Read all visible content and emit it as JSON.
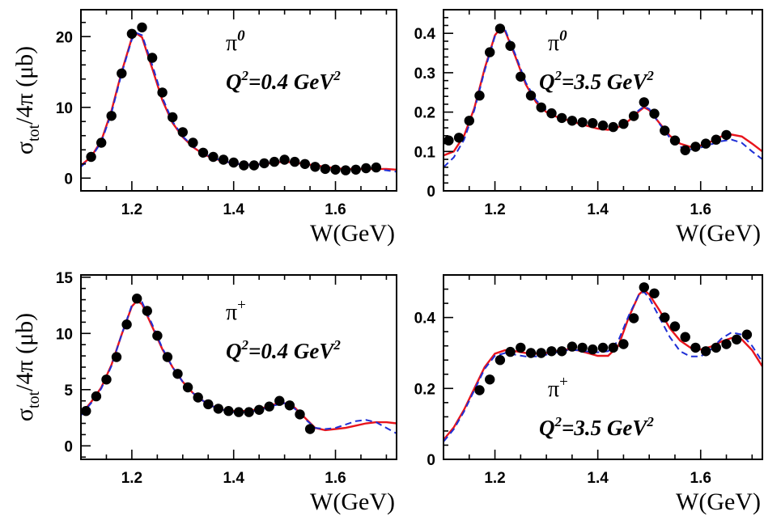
{
  "colors": {
    "model_red": "#e8141c",
    "model_blue": "#1f2fd6",
    "points": "#000000"
  },
  "chart_data": [
    {
      "id": "p1",
      "type": "scatter",
      "particle": "π",
      "particle_sup": "0",
      "q2_text": "Q",
      "q2_value": "=0.4 GeV",
      "xlabel": "W(GeV)",
      "ylabel": "σ",
      "ylabel_sub": "tot",
      "ylabel_rest": "/4π  (μb)",
      "xlim": [
        1.1,
        1.72
      ],
      "ylim": [
        -1.8,
        23.8
      ],
      "xticks": [
        1.2,
        1.4,
        1.6
      ],
      "xtick_labels": [
        "1.2",
        "1.4",
        "1.6"
      ],
      "yticks": [
        0,
        10,
        20
      ],
      "ytick_labels": [
        "0",
        "10",
        "20"
      ],
      "points": {
        "x": [
          1.12,
          1.14,
          1.16,
          1.18,
          1.2,
          1.22,
          1.24,
          1.26,
          1.28,
          1.3,
          1.32,
          1.34,
          1.36,
          1.38,
          1.4,
          1.42,
          1.44,
          1.46,
          1.48,
          1.5,
          1.52,
          1.54,
          1.56,
          1.58,
          1.6,
          1.62,
          1.64,
          1.66,
          1.68
        ],
        "y": [
          3.0,
          5.0,
          8.8,
          14.8,
          20.4,
          21.3,
          17.0,
          12.1,
          8.6,
          6.5,
          5.0,
          3.6,
          3.0,
          2.6,
          2.2,
          1.8,
          1.8,
          2.1,
          2.3,
          2.6,
          2.3,
          2.0,
          1.6,
          1.3,
          1.2,
          1.1,
          1.2,
          1.4,
          1.5
        ]
      },
      "series": [
        {
          "style": "solid",
          "color": "#e8141c",
          "x": [
            1.1,
            1.12,
            1.14,
            1.16,
            1.18,
            1.2,
            1.21,
            1.22,
            1.24,
            1.26,
            1.28,
            1.3,
            1.32,
            1.34,
            1.36,
            1.38,
            1.4,
            1.42,
            1.44,
            1.46,
            1.48,
            1.5,
            1.52,
            1.54,
            1.56,
            1.58,
            1.6,
            1.62,
            1.64,
            1.66,
            1.68,
            1.7,
            1.72
          ],
          "y": [
            1.8,
            3.0,
            5.3,
            9.5,
            15.0,
            19.8,
            20.4,
            19.9,
            15.5,
            11.0,
            7.8,
            5.8,
            4.4,
            3.4,
            2.8,
            2.4,
            2.1,
            1.9,
            1.9,
            2.0,
            2.2,
            2.3,
            2.2,
            2.0,
            1.8,
            1.6,
            1.4,
            1.3,
            1.3,
            1.3,
            1.3,
            1.3,
            1.2
          ]
        },
        {
          "style": "dashed",
          "color": "#1f2fd6",
          "x": [
            1.1,
            1.12,
            1.14,
            1.16,
            1.18,
            1.2,
            1.21,
            1.22,
            1.24,
            1.26,
            1.28,
            1.3,
            1.32,
            1.34,
            1.36,
            1.38,
            1.4,
            1.42,
            1.44,
            1.46,
            1.48,
            1.5,
            1.52,
            1.54,
            1.56,
            1.58,
            1.6,
            1.62,
            1.64,
            1.66,
            1.68,
            1.7,
            1.72
          ],
          "y": [
            1.6,
            2.9,
            5.1,
            9.2,
            14.8,
            19.6,
            20.5,
            20.2,
            16.0,
            11.4,
            8.0,
            5.9,
            4.5,
            3.5,
            2.9,
            2.4,
            2.1,
            1.9,
            1.9,
            2.0,
            2.3,
            2.4,
            2.2,
            1.9,
            1.6,
            1.4,
            1.2,
            1.1,
            1.1,
            1.2,
            1.2,
            1.1,
            0.9
          ]
        }
      ]
    },
    {
      "id": "p2",
      "type": "scatter",
      "particle": "π",
      "particle_sup": "0",
      "q2_text": "Q",
      "q2_value": "=3.5 GeV",
      "xlabel": "W(GeV)",
      "ylabel": "",
      "xlim": [
        1.1,
        1.72
      ],
      "ylim": [
        0,
        0.46
      ],
      "xticks": [
        1.2,
        1.4,
        1.6
      ],
      "xtick_labels": [
        "1.2",
        "1.4",
        "1.6"
      ],
      "yticks": [
        0,
        0.1,
        0.2,
        0.3,
        0.4
      ],
      "ytick_labels": [
        "0",
        "0.1",
        "0.2",
        "0.3",
        "0.4"
      ],
      "points": {
        "x": [
          1.11,
          1.13,
          1.15,
          1.17,
          1.19,
          1.21,
          1.23,
          1.25,
          1.27,
          1.29,
          1.31,
          1.33,
          1.35,
          1.37,
          1.39,
          1.41,
          1.43,
          1.45,
          1.47,
          1.49,
          1.51,
          1.53,
          1.55,
          1.57,
          1.59,
          1.61,
          1.63,
          1.65
        ],
        "y": [
          0.128,
          0.135,
          0.178,
          0.242,
          0.352,
          0.412,
          0.368,
          0.29,
          0.242,
          0.212,
          0.197,
          0.185,
          0.178,
          0.174,
          0.172,
          0.166,
          0.162,
          0.17,
          0.19,
          0.225,
          0.196,
          0.153,
          0.128,
          0.103,
          0.112,
          0.12,
          0.13,
          0.142
        ]
      },
      "series": [
        {
          "style": "solid",
          "color": "#e8141c",
          "x": [
            1.1,
            1.12,
            1.14,
            1.16,
            1.18,
            1.2,
            1.21,
            1.22,
            1.24,
            1.26,
            1.28,
            1.3,
            1.32,
            1.34,
            1.36,
            1.38,
            1.4,
            1.42,
            1.44,
            1.46,
            1.48,
            1.49,
            1.5,
            1.52,
            1.54,
            1.56,
            1.58,
            1.6,
            1.62,
            1.64,
            1.66,
            1.68,
            1.7,
            1.72
          ],
          "y": [
            0.09,
            0.1,
            0.14,
            0.21,
            0.31,
            0.395,
            0.412,
            0.405,
            0.34,
            0.27,
            0.225,
            0.2,
            0.188,
            0.18,
            0.172,
            0.165,
            0.158,
            0.155,
            0.162,
            0.178,
            0.202,
            0.212,
            0.205,
            0.172,
            0.14,
            0.12,
            0.112,
            0.115,
            0.125,
            0.138,
            0.143,
            0.138,
            0.12,
            0.1
          ]
        },
        {
          "style": "dashed",
          "color": "#1f2fd6",
          "x": [
            1.1,
            1.12,
            1.14,
            1.16,
            1.18,
            1.2,
            1.21,
            1.22,
            1.24,
            1.26,
            1.28,
            1.3,
            1.32,
            1.34,
            1.36,
            1.38,
            1.4,
            1.42,
            1.44,
            1.46,
            1.48,
            1.49,
            1.5,
            1.52,
            1.54,
            1.56,
            1.58,
            1.6,
            1.62,
            1.64,
            1.66,
            1.68,
            1.7,
            1.72
          ],
          "y": [
            0.06,
            0.085,
            0.13,
            0.205,
            0.305,
            0.392,
            0.413,
            0.408,
            0.345,
            0.275,
            0.23,
            0.205,
            0.192,
            0.184,
            0.176,
            0.17,
            0.165,
            0.163,
            0.168,
            0.182,
            0.205,
            0.214,
            0.208,
            0.17,
            0.135,
            0.112,
            0.105,
            0.11,
            0.118,
            0.126,
            0.13,
            0.122,
            0.1,
            0.08
          ]
        }
      ]
    },
    {
      "id": "p3",
      "type": "scatter",
      "particle": "π",
      "particle_sup": "+",
      "q2_text": "Q",
      "q2_value": "=0.4 GeV",
      "xlabel": "W(GeV)",
      "ylabel": "σ",
      "ylabel_sub": "tot",
      "ylabel_rest": "/4π  (μb)",
      "xlim": [
        1.1,
        1.72
      ],
      "ylim": [
        -1.2,
        15.2
      ],
      "xticks": [
        1.2,
        1.4,
        1.6
      ],
      "xtick_labels": [
        "1.2",
        "1.4",
        "1.6"
      ],
      "yticks": [
        0,
        5,
        10,
        15
      ],
      "ytick_labels": [
        "0",
        "5",
        "10",
        "15"
      ],
      "points": {
        "x": [
          1.11,
          1.13,
          1.15,
          1.17,
          1.19,
          1.21,
          1.23,
          1.25,
          1.27,
          1.29,
          1.31,
          1.33,
          1.35,
          1.37,
          1.39,
          1.41,
          1.43,
          1.45,
          1.47,
          1.49,
          1.51,
          1.53,
          1.55
        ],
        "y": [
          3.1,
          4.4,
          5.9,
          7.9,
          10.8,
          13.1,
          12.0,
          9.8,
          7.9,
          6.4,
          5.2,
          4.3,
          3.7,
          3.3,
          3.1,
          3.0,
          3.0,
          3.2,
          3.5,
          4.0,
          3.6,
          2.8,
          1.5
        ]
      },
      "series": [
        {
          "style": "solid",
          "color": "#e8141c",
          "x": [
            1.1,
            1.12,
            1.14,
            1.16,
            1.18,
            1.2,
            1.21,
            1.22,
            1.24,
            1.26,
            1.28,
            1.3,
            1.32,
            1.34,
            1.36,
            1.38,
            1.4,
            1.42,
            1.44,
            1.46,
            1.48,
            1.5,
            1.52,
            1.54,
            1.56,
            1.58,
            1.6,
            1.62,
            1.64,
            1.66,
            1.68,
            1.7,
            1.72
          ],
          "y": [
            2.8,
            3.9,
            5.2,
            7.2,
            9.9,
            12.4,
            12.9,
            12.6,
            10.6,
            8.6,
            7.0,
            5.7,
            4.7,
            4.0,
            3.5,
            3.2,
            3.1,
            3.1,
            3.2,
            3.4,
            3.7,
            3.8,
            3.4,
            2.5,
            1.6,
            1.4,
            1.5,
            1.6,
            1.8,
            2.0,
            2.1,
            2.1,
            2.0
          ]
        },
        {
          "style": "dashed",
          "color": "#1f2fd6",
          "x": [
            1.1,
            1.12,
            1.14,
            1.16,
            1.18,
            1.2,
            1.21,
            1.22,
            1.24,
            1.26,
            1.28,
            1.3,
            1.32,
            1.34,
            1.36,
            1.38,
            1.4,
            1.42,
            1.44,
            1.46,
            1.48,
            1.5,
            1.52,
            1.54,
            1.56,
            1.58,
            1.6,
            1.62,
            1.64,
            1.66,
            1.68,
            1.7,
            1.72
          ],
          "y": [
            2.7,
            3.8,
            5.1,
            7.1,
            9.9,
            12.5,
            13.1,
            12.8,
            10.8,
            8.7,
            7.0,
            5.7,
            4.7,
            4.0,
            3.5,
            3.2,
            3.0,
            3.0,
            3.1,
            3.3,
            3.6,
            3.8,
            3.3,
            2.4,
            1.6,
            1.5,
            1.6,
            1.9,
            2.2,
            2.3,
            2.1,
            1.6,
            1.1
          ]
        }
      ]
    },
    {
      "id": "p4",
      "type": "scatter",
      "particle": "π",
      "particle_sup": "+",
      "q2_text": "Q",
      "q2_value": "=3.5 GeV",
      "xlabel": "W(GeV)",
      "ylabel": "",
      "xlim": [
        1.1,
        1.72
      ],
      "ylim": [
        0,
        0.52
      ],
      "xticks": [
        1.2,
        1.4,
        1.6
      ],
      "xtick_labels": [
        "1.2",
        "1.4",
        "1.6"
      ],
      "yticks": [
        0,
        0.2,
        0.4
      ],
      "ytick_labels": [
        "0",
        "0.2",
        "0.4"
      ],
      "points": {
        "x": [
          1.17,
          1.19,
          1.21,
          1.23,
          1.25,
          1.27,
          1.29,
          1.31,
          1.33,
          1.35,
          1.37,
          1.39,
          1.41,
          1.43,
          1.45,
          1.47,
          1.49,
          1.51,
          1.53,
          1.55,
          1.57,
          1.59,
          1.61,
          1.63,
          1.65,
          1.67,
          1.69
        ],
        "y": [
          0.195,
          0.225,
          0.28,
          0.303,
          0.315,
          0.3,
          0.3,
          0.305,
          0.305,
          0.318,
          0.315,
          0.31,
          0.315,
          0.315,
          0.325,
          0.398,
          0.485,
          0.468,
          0.4,
          0.375,
          0.345,
          0.315,
          0.305,
          0.315,
          0.325,
          0.338,
          0.352
        ]
      },
      "series": [
        {
          "style": "solid",
          "color": "#e8141c",
          "x": [
            1.1,
            1.12,
            1.14,
            1.16,
            1.18,
            1.2,
            1.22,
            1.24,
            1.26,
            1.28,
            1.3,
            1.32,
            1.34,
            1.36,
            1.38,
            1.4,
            1.42,
            1.44,
            1.46,
            1.48,
            1.49,
            1.5,
            1.52,
            1.54,
            1.56,
            1.58,
            1.6,
            1.62,
            1.64,
            1.66,
            1.68,
            1.7,
            1.72
          ],
          "y": [
            0.055,
            0.09,
            0.14,
            0.2,
            0.26,
            0.298,
            0.308,
            0.305,
            0.3,
            0.298,
            0.3,
            0.305,
            0.31,
            0.308,
            0.3,
            0.292,
            0.292,
            0.32,
            0.4,
            0.465,
            0.478,
            0.465,
            0.42,
            0.37,
            0.335,
            0.315,
            0.31,
            0.318,
            0.332,
            0.342,
            0.338,
            0.308,
            0.262
          ]
        },
        {
          "style": "dashed",
          "color": "#1f2fd6",
          "x": [
            1.1,
            1.12,
            1.14,
            1.16,
            1.18,
            1.2,
            1.22,
            1.24,
            1.26,
            1.28,
            1.3,
            1.32,
            1.34,
            1.36,
            1.38,
            1.4,
            1.42,
            1.44,
            1.46,
            1.48,
            1.49,
            1.5,
            1.52,
            1.54,
            1.56,
            1.58,
            1.6,
            1.62,
            1.64,
            1.66,
            1.68,
            1.7,
            1.72
          ],
          "y": [
            0.05,
            0.085,
            0.135,
            0.195,
            0.255,
            0.292,
            0.3,
            0.295,
            0.29,
            0.29,
            0.295,
            0.302,
            0.308,
            0.308,
            0.304,
            0.302,
            0.305,
            0.335,
            0.405,
            0.465,
            0.472,
            0.455,
            0.4,
            0.345,
            0.305,
            0.29,
            0.29,
            0.31,
            0.34,
            0.358,
            0.352,
            0.32,
            0.275
          ]
        }
      ]
    }
  ]
}
